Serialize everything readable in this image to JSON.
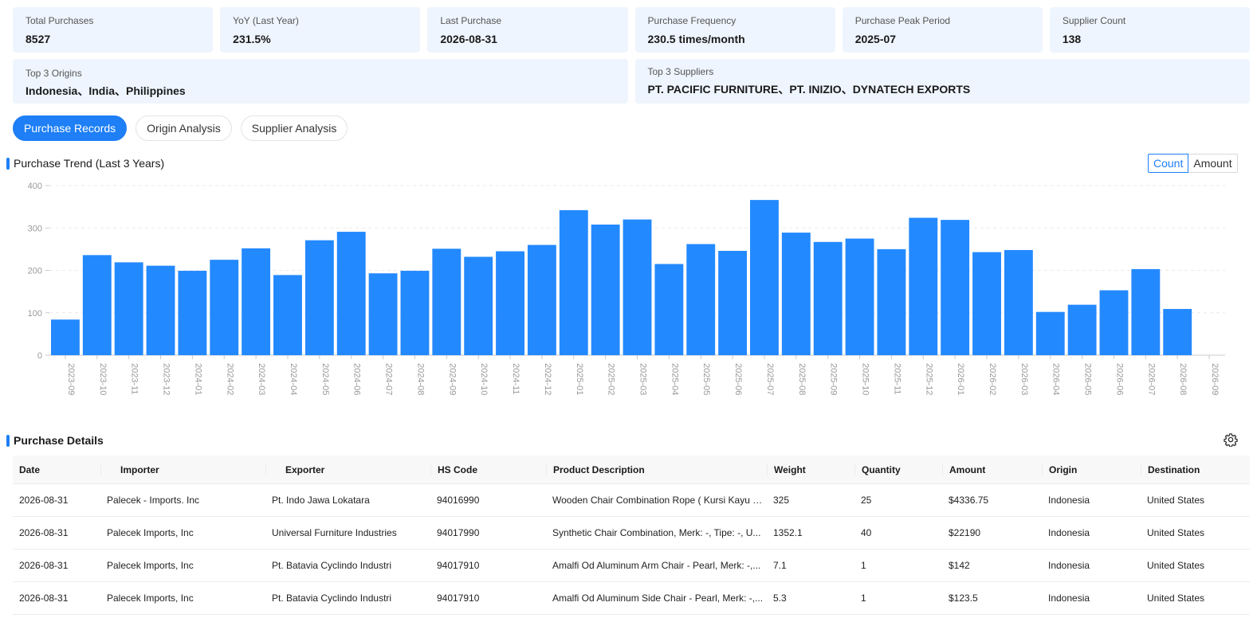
{
  "stats": [
    {
      "label": "Total Purchases",
      "value": "8527"
    },
    {
      "label": "YoY (Last Year)",
      "value": "231.5%"
    },
    {
      "label": "Last Purchase",
      "value": "2026-08-31"
    },
    {
      "label": "Purchase Frequency",
      "value": "230.5 times/month"
    },
    {
      "label": "Purchase Peak Period",
      "value": "2025-07"
    },
    {
      "label": "Supplier Count",
      "value": "138"
    }
  ],
  "top_origins": {
    "label": "Top 3 Origins",
    "value": "Indonesia、India、Philippines"
  },
  "top_suppliers": {
    "label": "Top 3 Suppliers",
    "value": "PT. PACIFIC FURNITURE、PT. INIZIO、DYNATECH EXPORTS"
  },
  "tabs": [
    "Purchase Records",
    "Origin Analysis",
    "Supplier Analysis"
  ],
  "trend": {
    "title": "Purchase Trend (Last 3 Years)",
    "toggle": [
      "Count",
      "Amount"
    ]
  },
  "chart_data": {
    "type": "bar",
    "categories": [
      "2023-09",
      "2023-10",
      "2023-11",
      "2023-12",
      "2024-01",
      "2024-02",
      "2024-03",
      "2024-04",
      "2024-05",
      "2024-06",
      "2024-07",
      "2024-08",
      "2024-09",
      "2024-10",
      "2024-11",
      "2024-12",
      "2025-01",
      "2025-02",
      "2025-03",
      "2025-04",
      "2025-05",
      "2025-06",
      "2025-07",
      "2025-08",
      "2025-09",
      "2025-10",
      "2025-11",
      "2025-12",
      "2026-01",
      "2026-02",
      "2026-03",
      "2026-04",
      "2026-05",
      "2026-06",
      "2026-07",
      "2026-08",
      "2026-09"
    ],
    "values": [
      84,
      236,
      219,
      211,
      199,
      225,
      252,
      189,
      271,
      291,
      193,
      199,
      251,
      232,
      245,
      260,
      342,
      308,
      320,
      215,
      262,
      246,
      366,
      289,
      267,
      275,
      250,
      324,
      319,
      243,
      248,
      102,
      119,
      153,
      203,
      109,
      0
    ],
    "ylim": [
      0,
      400
    ],
    "yticks": [
      0,
      100,
      200,
      300,
      400
    ],
    "color": "#2389ff",
    "grid": true
  },
  "details": {
    "title": "Purchase Details",
    "columns": [
      "Date",
      "Importer",
      "Exporter",
      "HS Code",
      "Product Description",
      "Weight",
      "Quantity",
      "Amount",
      "Origin",
      "Destination"
    ],
    "rows": [
      [
        "2026-08-31",
        "Palecek - Imports. Inc",
        "Pt. Indo Jawa Lokatara",
        "94016990",
        "Wooden Chair Combination Rope ( Kursi Kayu K...",
        "325",
        "25",
        "$4336.75",
        "Indonesia",
        "United States"
      ],
      [
        "2026-08-31",
        "Palecek Imports, Inc",
        "Universal Furniture Industries",
        "94017990",
        "Synthetic Chair Combination, Merk: -, Tipe: -, U...",
        "1352.1",
        "40",
        "$22190",
        "Indonesia",
        "United States"
      ],
      [
        "2026-08-31",
        "Palecek Imports, Inc",
        "Pt. Batavia Cyclindo Industri",
        "94017910",
        "Amalfi Od Aluminum Arm Chair - Pearl, Merk: -,...",
        "7.1",
        "1",
        "$142",
        "Indonesia",
        "United States"
      ],
      [
        "2026-08-31",
        "Palecek Imports, Inc",
        "Pt. Batavia Cyclindo Industri",
        "94017910",
        "Amalfi Od Aluminum Side Chair - Pearl, Merk: -,...",
        "5.3",
        "1",
        "$123.5",
        "Indonesia",
        "United States"
      ]
    ]
  }
}
